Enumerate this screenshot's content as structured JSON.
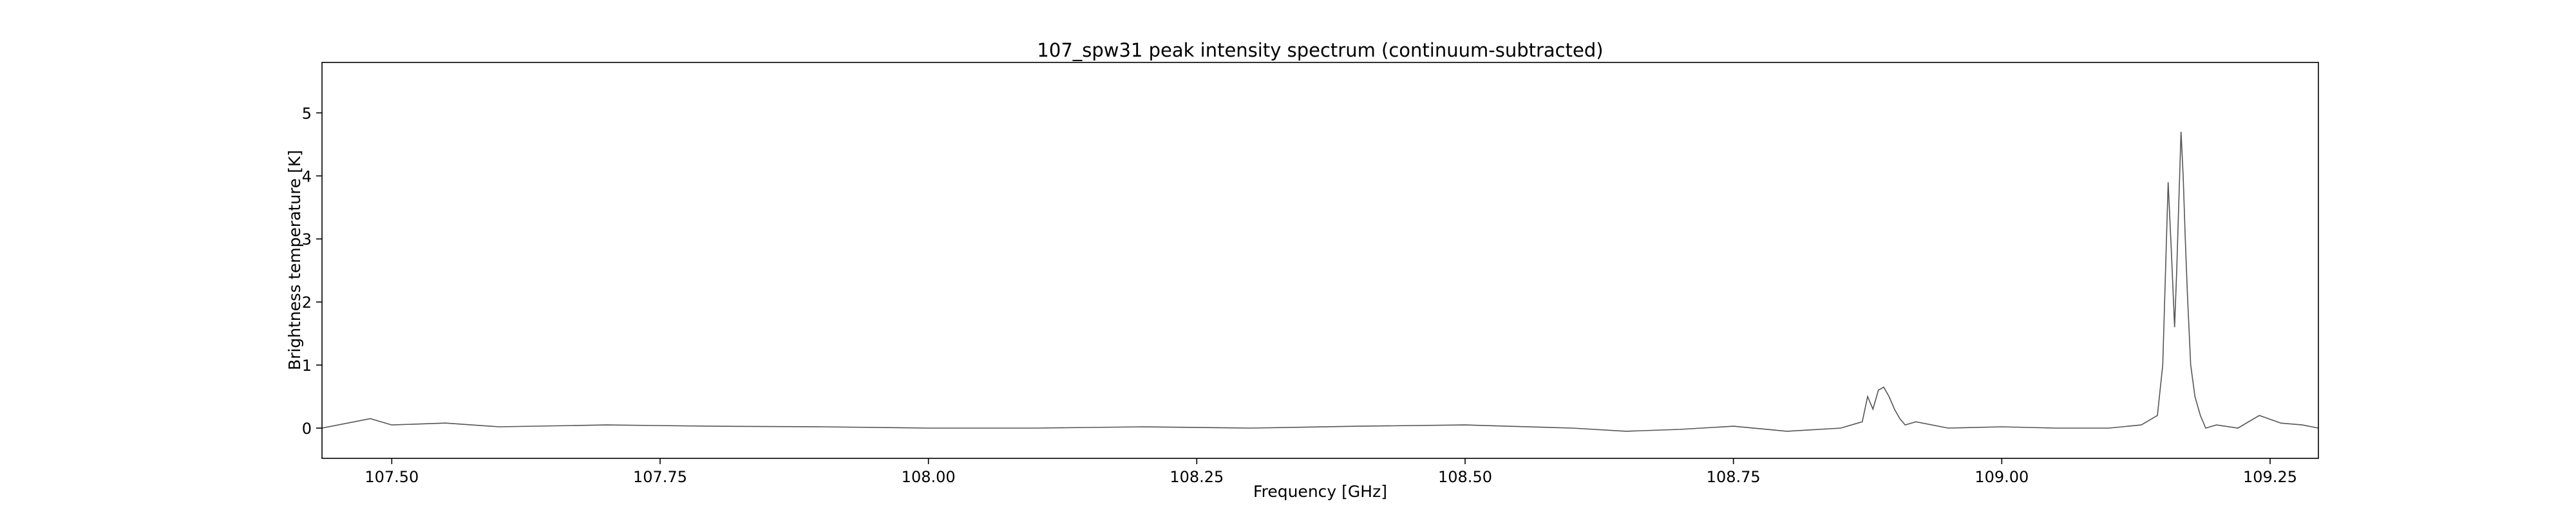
{
  "chart_data": {
    "type": "line",
    "title": "107_spw31 peak intensity spectrum (continuum-subtracted)",
    "xlabel": "Frequency [GHz]",
    "ylabel": "Brightness temperature [K]",
    "xlim": [
      107.435,
      109.295
    ],
    "ylim": [
      -0.48,
      5.8
    ],
    "xticks": [
      107.5,
      107.75,
      108.0,
      108.25,
      108.5,
      108.75,
      109.0,
      109.25
    ],
    "xtick_labels": [
      "107.50",
      "107.75",
      "108.00",
      "108.25",
      "108.50",
      "108.75",
      "109.00",
      "109.25"
    ],
    "yticks": [
      0,
      1,
      2,
      3,
      4,
      5
    ],
    "ytick_labels": [
      "0",
      "1",
      "2",
      "3",
      "4",
      "5"
    ],
    "grid": false,
    "line_color": "#555555",
    "series": [
      {
        "name": "",
        "x": [
          107.435,
          107.48,
          107.5,
          107.55,
          107.6,
          107.7,
          107.8,
          107.9,
          108.0,
          108.1,
          108.2,
          108.3,
          108.4,
          108.5,
          108.6,
          108.65,
          108.7,
          108.75,
          108.8,
          108.85,
          108.87,
          108.875,
          108.88,
          108.885,
          108.89,
          108.895,
          108.9,
          108.905,
          108.91,
          108.92,
          108.95,
          109.0,
          109.05,
          109.1,
          109.13,
          109.145,
          109.15,
          109.155,
          109.158,
          109.161,
          109.163,
          109.165,
          109.167,
          109.169,
          109.171,
          109.173,
          109.176,
          109.18,
          109.185,
          109.19,
          109.2,
          109.22,
          109.24,
          109.26,
          109.28,
          109.295
        ],
        "y": [
          0.0,
          0.15,
          0.05,
          0.08,
          0.02,
          0.05,
          0.03,
          0.02,
          0.0,
          0.0,
          0.02,
          0.0,
          0.03,
          0.05,
          0.0,
          -0.05,
          -0.02,
          0.03,
          -0.05,
          0.0,
          0.1,
          0.5,
          0.3,
          0.6,
          0.65,
          0.5,
          0.3,
          0.15,
          0.05,
          0.1,
          0.0,
          0.02,
          0.0,
          0.0,
          0.05,
          0.2,
          1.0,
          3.9,
          2.8,
          1.6,
          2.5,
          3.6,
          4.7,
          4.0,
          3.0,
          2.1,
          1.0,
          0.5,
          0.2,
          0.0,
          0.05,
          0.0,
          0.2,
          0.08,
          0.05,
          0.0
        ]
      }
    ]
  }
}
